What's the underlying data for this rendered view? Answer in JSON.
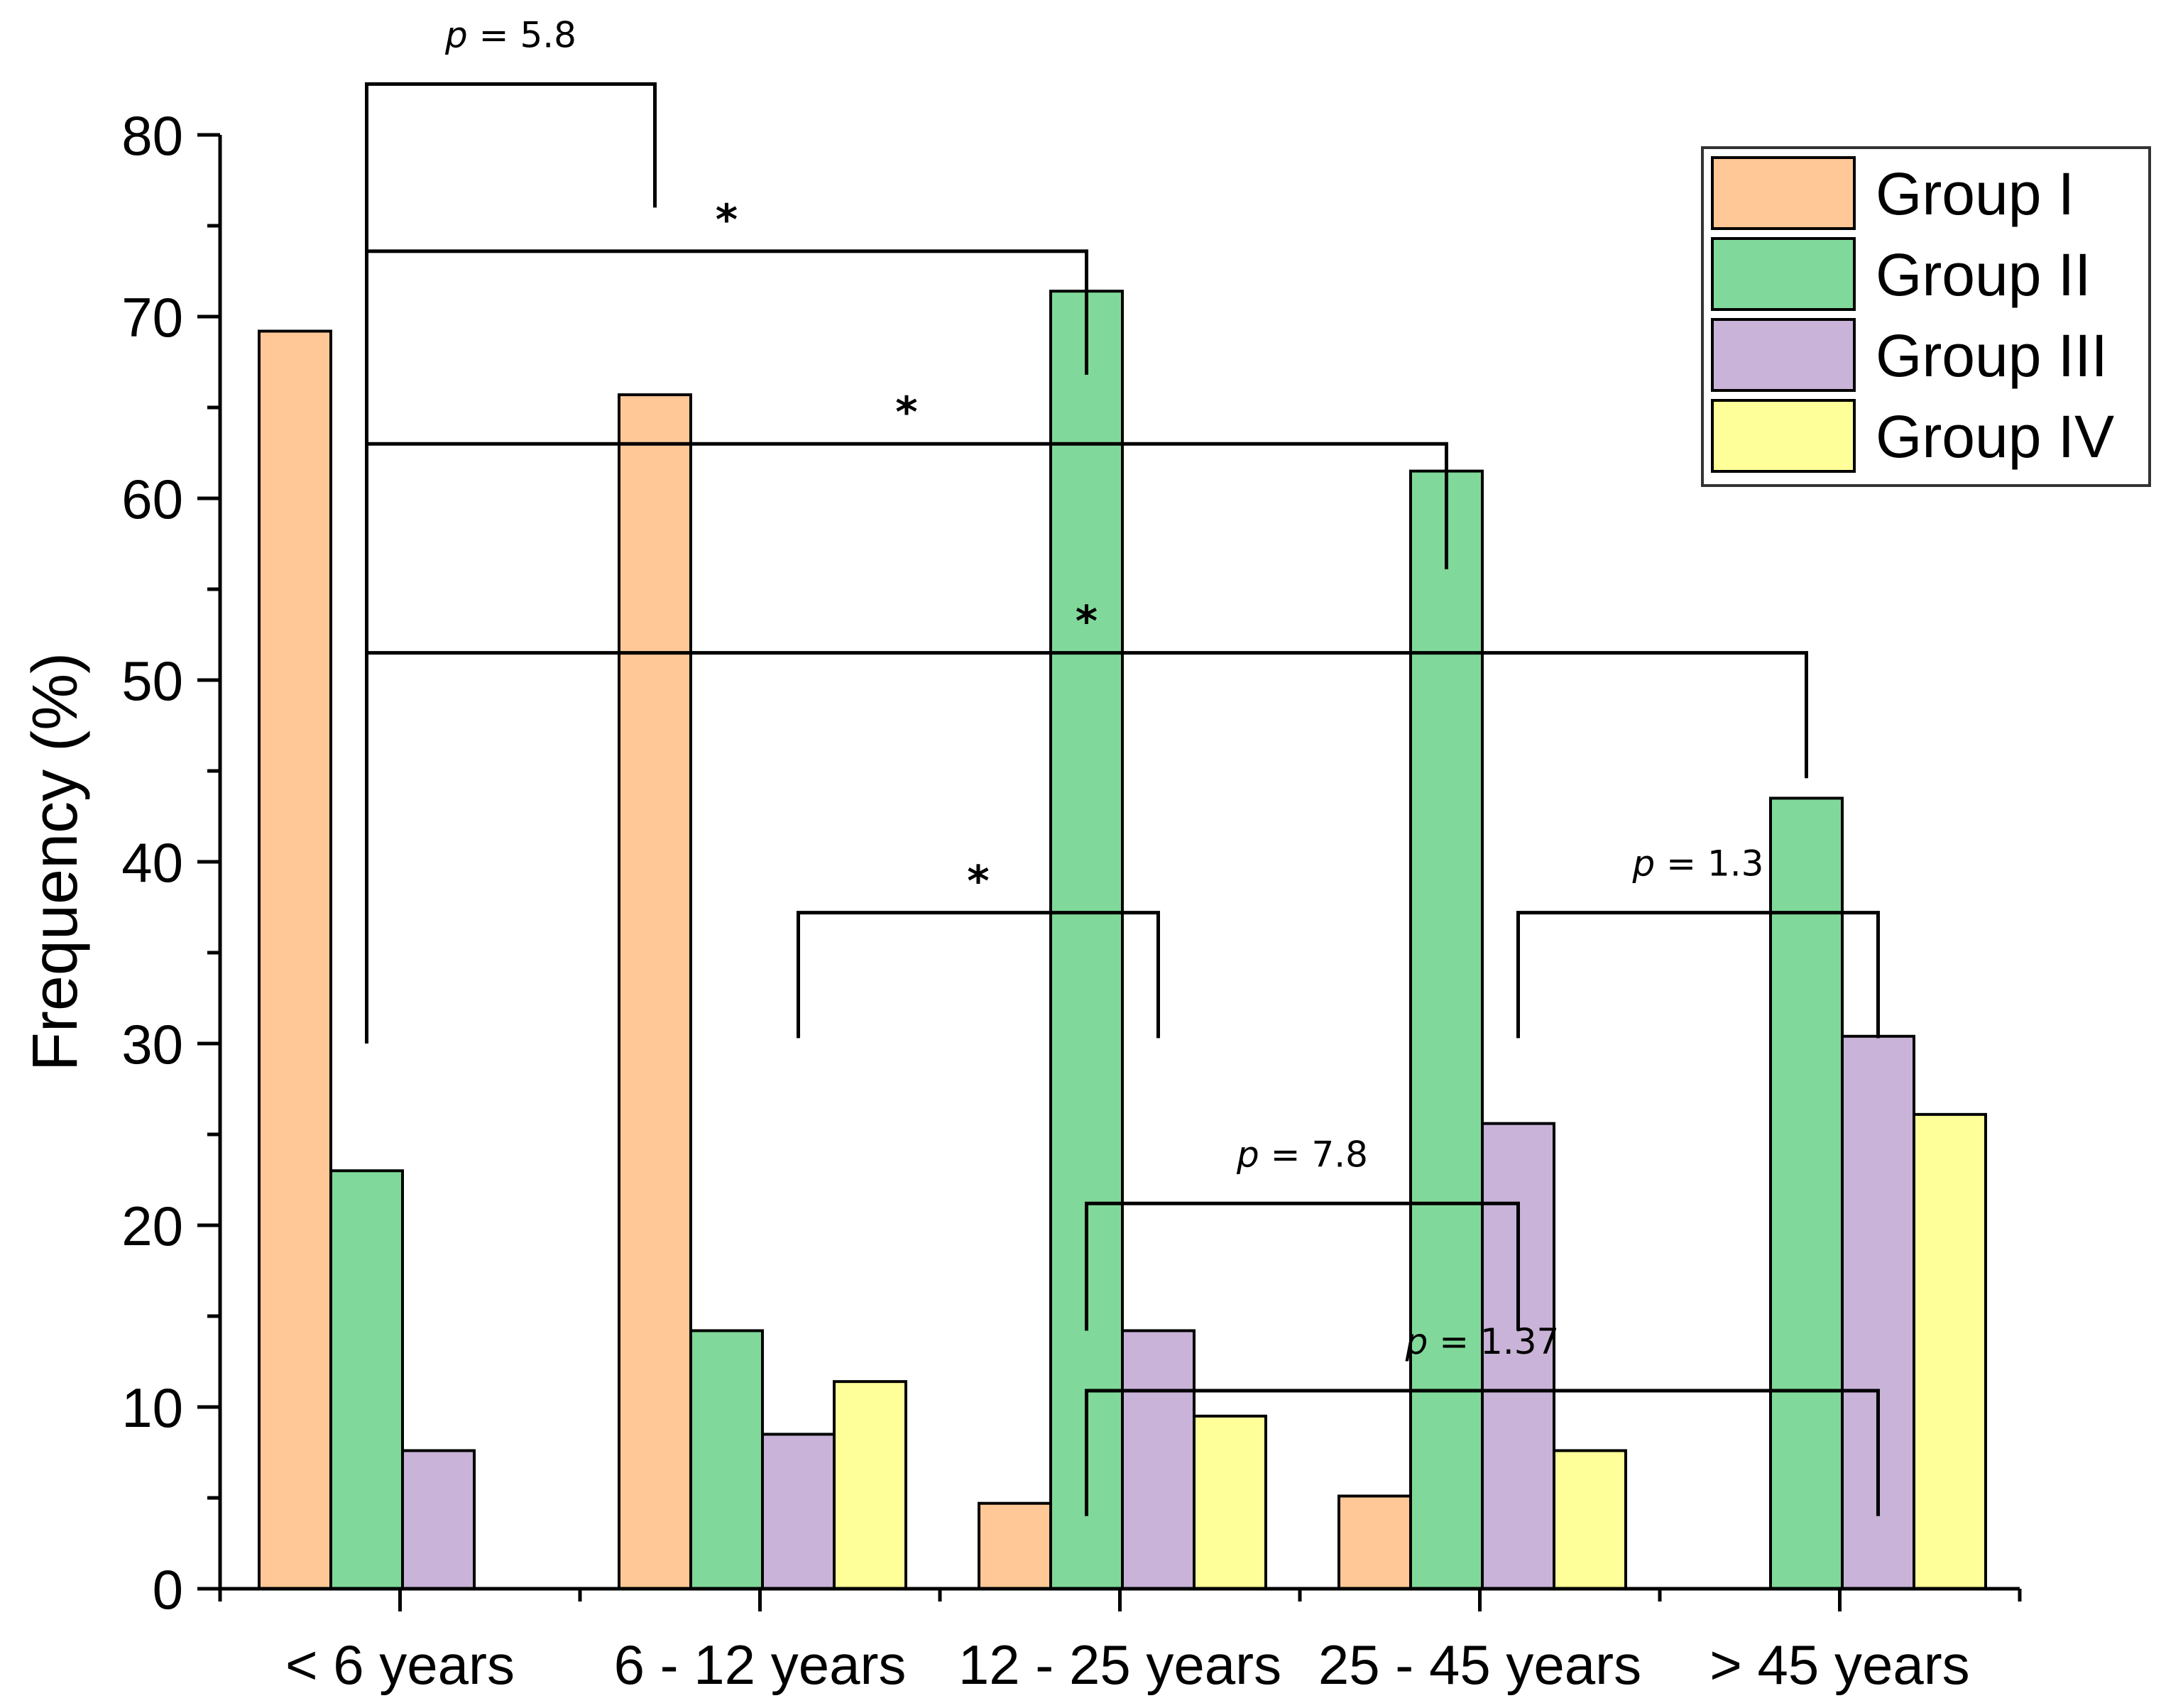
{
  "chart_data": {
    "type": "bar",
    "title": "",
    "xlabel": "",
    "ylabel": "Frequency (%)",
    "ylim": [
      0,
      80
    ],
    "yticks": [
      0,
      10,
      20,
      30,
      40,
      50,
      60,
      70,
      80
    ],
    "categories": [
      "< 6 years",
      "6 - 12 years",
      "12 - 25 years",
      "25 - 45 years",
      "> 45 years"
    ],
    "series": [
      {
        "name": "Group I",
        "color": "#FFC896",
        "values": [
          69.2,
          65.7,
          4.7,
          5.1,
          null
        ]
      },
      {
        "name": "Group II",
        "color": "#80D99A",
        "values": [
          23.0,
          14.2,
          71.4,
          61.5,
          43.5
        ]
      },
      {
        "name": "Group III",
        "color": "#C9B3D8",
        "values": [
          7.6,
          8.5,
          14.2,
          25.6,
          30.4
        ]
      },
      {
        "name": "Group IV",
        "color": "#FFFF99",
        "values": [
          null,
          11.4,
          9.5,
          7.6,
          26.1
        ]
      }
    ],
    "legend_position": "top-right",
    "annotations": [
      {
        "label_prefix": "p",
        "label_value": "= 5.8",
        "from": {
          "category": 0,
          "series": 1
        },
        "to": {
          "category": 1,
          "series": 0
        },
        "level": 82.8,
        "drop_to": [
          30,
          76
        ]
      },
      {
        "label": "*",
        "from": {
          "category": 0,
          "series": 1
        },
        "to": {
          "category": 2,
          "series": 1
        },
        "level": 73.6,
        "drop_to": [
          30,
          66.8
        ]
      },
      {
        "label": "*",
        "from": {
          "category": 0,
          "series": 1
        },
        "to": {
          "category": 3,
          "series": 1
        },
        "level": 63.0,
        "drop_to": [
          30,
          56.1
        ]
      },
      {
        "label": "*",
        "from": {
          "category": 0,
          "series": 1
        },
        "to": {
          "category": 4,
          "series": 1
        },
        "level": 51.5,
        "drop_to": [
          30,
          44.6
        ]
      },
      {
        "label": "*",
        "from": {
          "category": 1,
          "series": 2
        },
        "to": {
          "category": 2,
          "series": 2
        },
        "level": 37.2,
        "drop_to": [
          30.3,
          30.3
        ]
      },
      {
        "label_prefix": "p",
        "label_value": "= 1.3",
        "from": {
          "category": 3,
          "series": 2
        },
        "to": {
          "category": 4,
          "series": 2
        },
        "level": 37.2,
        "drop_to": [
          30.3,
          30.3
        ]
      },
      {
        "label_prefix": "p",
        "label_value": "= 7.8",
        "from": {
          "category": 2,
          "series": 1
        },
        "to": {
          "category": 3,
          "series": 2
        },
        "level": 21.2,
        "drop_to": [
          14.2,
          14.2
        ]
      },
      {
        "label_prefix": "p",
        "label_value": "= 1.37",
        "from": {
          "category": 2,
          "series": 1
        },
        "to": {
          "category": 4,
          "series": 2
        },
        "level": 10.9,
        "drop_to": [
          4,
          4
        ]
      }
    ]
  }
}
